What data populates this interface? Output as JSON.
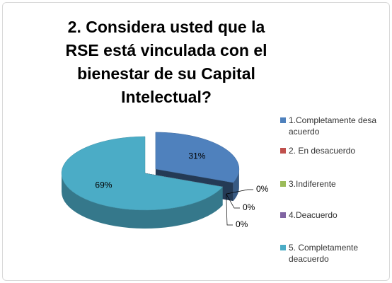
{
  "chart_data": {
    "type": "pie",
    "title": "2. Considera usted que la RSE está vinculada con el bienestar de su Capital Intelectual?",
    "categories": [
      "1.Completamente desa acuerdo",
      "2. En desacuerdo",
      "3.Indiferente",
      "4.Deacuerdo",
      "5. Completamente deacuerdo"
    ],
    "values": [
      31,
      0,
      0,
      0,
      69
    ],
    "value_labels": [
      "31%",
      "0%",
      "0%",
      "0%",
      "69%"
    ],
    "colors": [
      "#4f81bd",
      "#c0504d",
      "#9bbb59",
      "#8064a2",
      "#4bacc6"
    ],
    "legend": "right"
  }
}
